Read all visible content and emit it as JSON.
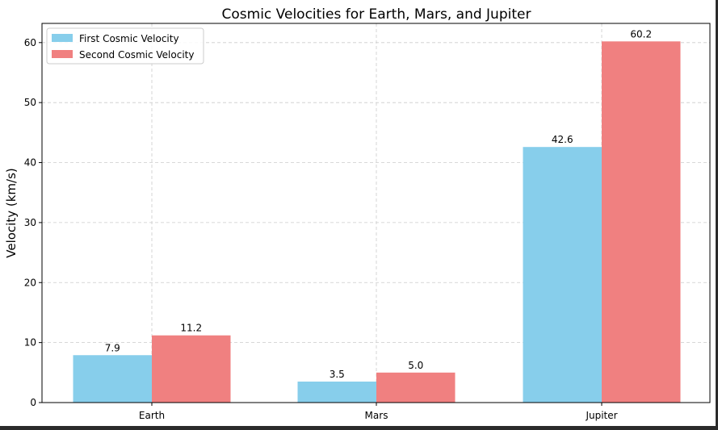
{
  "chart_data": {
    "type": "bar",
    "title": "Cosmic Velocities for Earth, Mars, and Jupiter",
    "xlabel": "",
    "ylabel": "Velocity (km/s)",
    "categories": [
      "Earth",
      "Mars",
      "Jupiter"
    ],
    "series": [
      {
        "name": "First Cosmic Velocity",
        "values": [
          7.9,
          3.5,
          42.6
        ],
        "labels": [
          "7.9",
          "3.5",
          "42.6"
        ],
        "color": "#87ceeb"
      },
      {
        "name": "Second Cosmic Velocity",
        "values": [
          11.2,
          5.0,
          60.2
        ],
        "labels": [
          "11.2",
          "5.0",
          "60.2"
        ],
        "color": "#f08080"
      }
    ],
    "ylim": [
      0,
      63.2
    ],
    "yticks": [
      0,
      10,
      20,
      30,
      40,
      50,
      60
    ],
    "grid": true,
    "legend_position": "top-left"
  }
}
